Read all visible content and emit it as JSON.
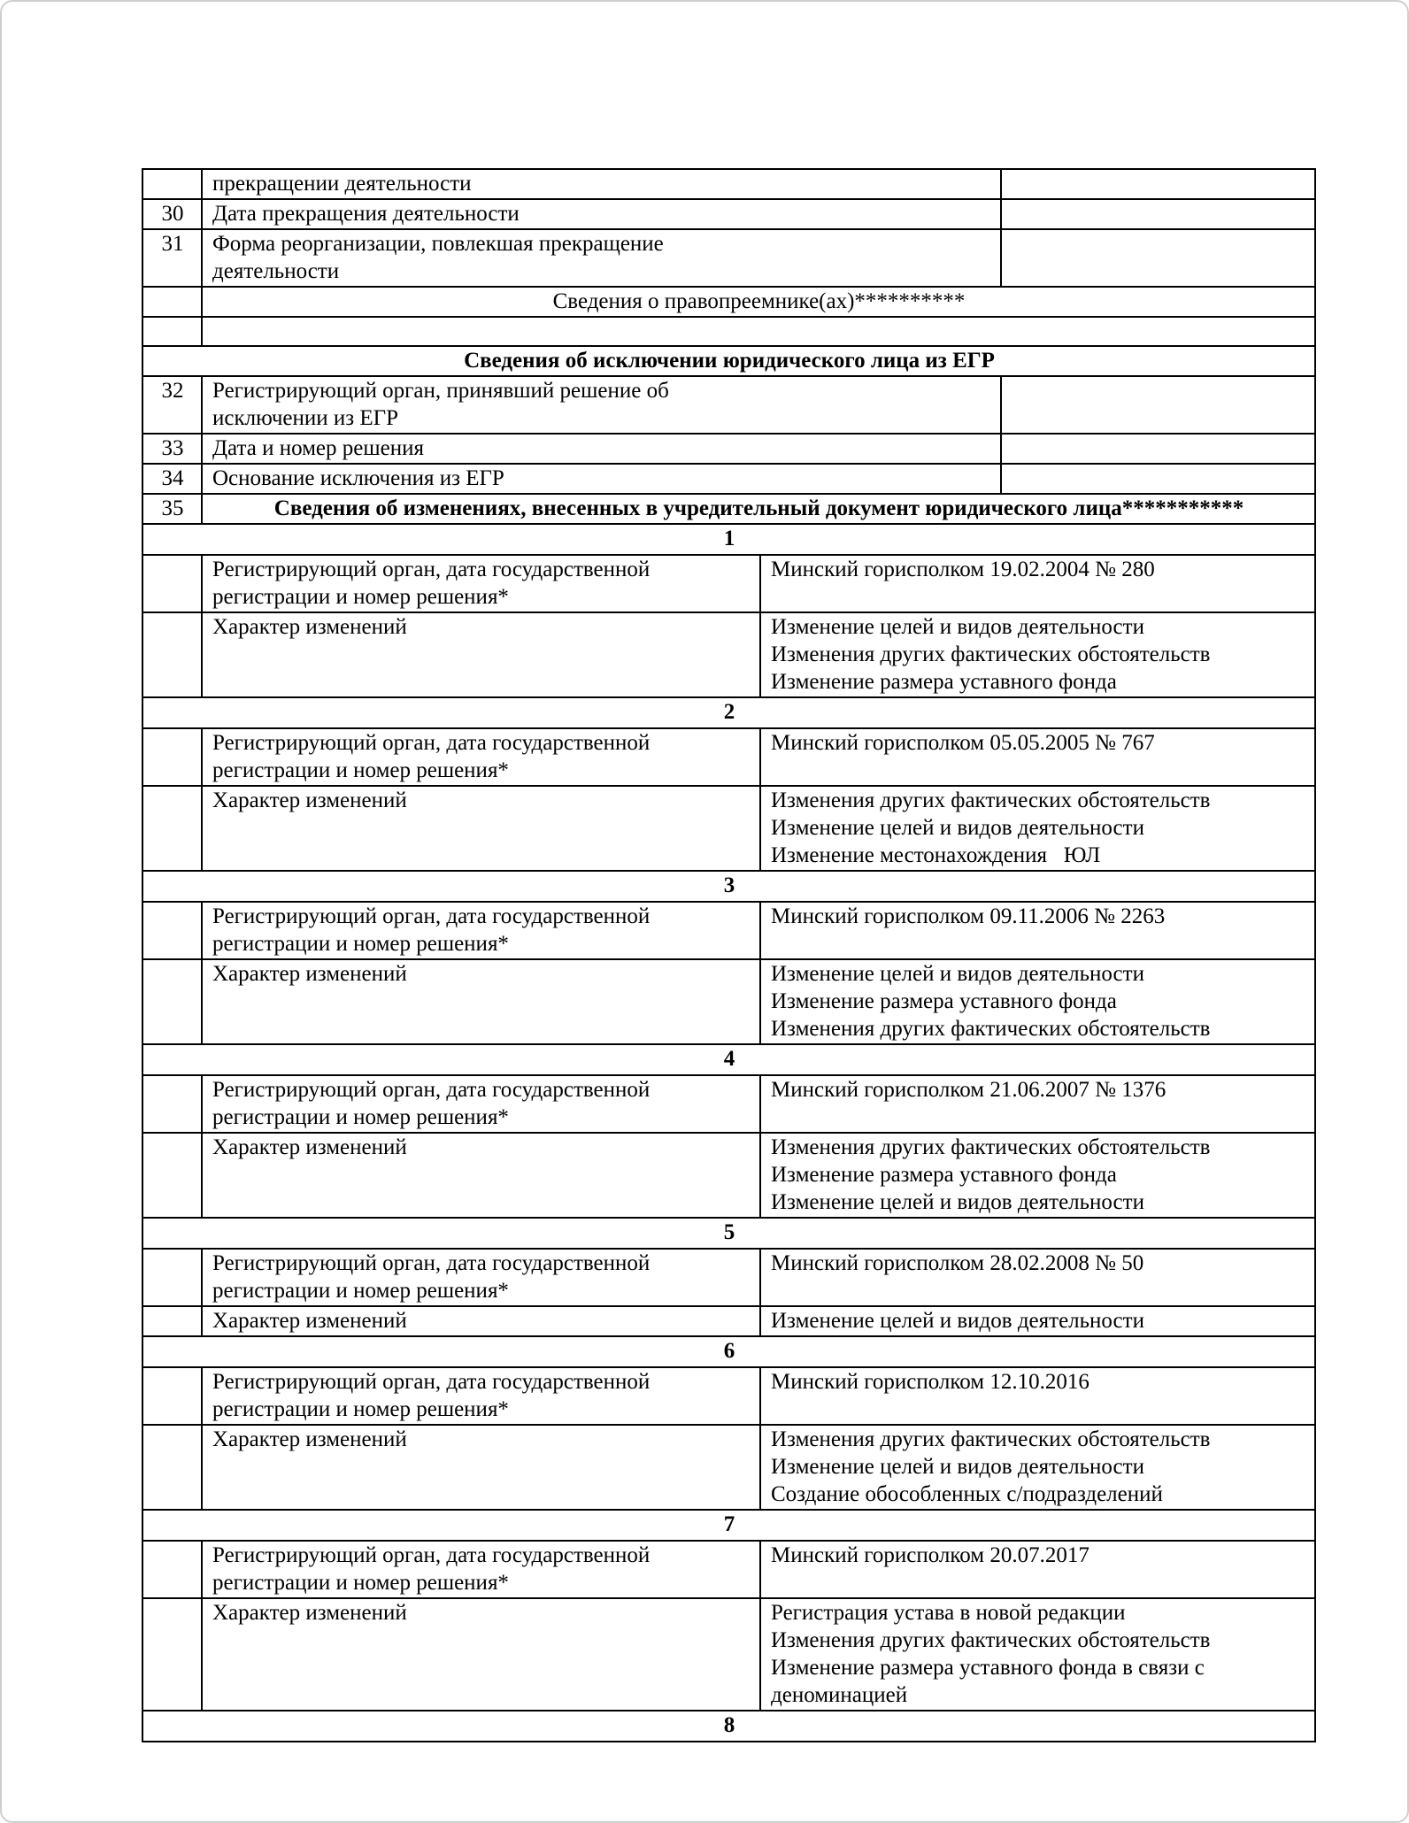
{
  "table": {
    "top_rows": [
      {
        "num": "",
        "label": "прекращении деятельности",
        "value": ""
      },
      {
        "num": "30",
        "label": "Дата прекращения деятельности",
        "value": ""
      },
      {
        "num": "31",
        "label": "Форма реорганизации, повлекшая прекращение\nдеятельности",
        "value": ""
      }
    ],
    "successor_header": "Сведения о правопреемнике(ах)**********",
    "exclusion_header": "Сведения об исключении юридического лица из ЕГР",
    "exclusion_rows": [
      {
        "num": "32",
        "label": "Регистрирующий орган, принявший решение об\nисключении из ЕГР",
        "value": ""
      },
      {
        "num": "33",
        "label": "Дата и номер решения",
        "value": ""
      },
      {
        "num": "34",
        "label": "Основание исключения из ЕГР",
        "value": ""
      }
    ],
    "row35": {
      "num": "35",
      "label": "Сведения об изменениях, внесенных в учредительный документ юридического лица***********"
    },
    "section_labels": {
      "org": "Регистрирующий орган, дата государственной\nрегистрации и номер решения*",
      "changes": "Характер изменений"
    },
    "sections": [
      {
        "number": "1",
        "org_value": "Минский горисполком 19.02.2004 № 280",
        "changes": [
          "Изменение целей и видов деятельности",
          "Изменения других фактических обстоятельств",
          "Изменение размера уставного фонда"
        ]
      },
      {
        "number": "2",
        "org_value": "Минский горисполком 05.05.2005 № 767",
        "changes": [
          "Изменения других фактических обстоятельств",
          "Изменение целей и видов деятельности",
          "Изменение местонахождения   ЮЛ"
        ]
      },
      {
        "number": "3",
        "org_value": "Минский горисполком 09.11.2006 № 2263",
        "changes": [
          "Изменение целей и видов деятельности",
          "Изменение размера уставного фонда",
          "Изменения других фактических обстоятельств"
        ]
      },
      {
        "number": "4",
        "org_value": "Минский горисполком 21.06.2007 № 1376",
        "changes": [
          "Изменения других фактических обстоятельств",
          "Изменение размера уставного фонда",
          "Изменение целей и видов деятельности"
        ]
      },
      {
        "number": "5",
        "org_value": "Минский горисполком 28.02.2008 № 50",
        "changes": [
          "Изменение целей и видов деятельности"
        ]
      },
      {
        "number": "6",
        "org_value": "Минский горисполком 12.10.2016",
        "changes": [
          "Изменения других фактических обстоятельств",
          "Изменение целей и видов деятельности",
          "Создание обособленных с/подразделений"
        ]
      },
      {
        "number": "7",
        "org_value": "Минский горисполком 20.07.2017",
        "changes": [
          "Регистрация устава в новой редакции",
          "Изменения других фактических обстоятельств",
          "Изменение размера уставного фонда в связи с деноминацией"
        ]
      },
      {
        "number": "8",
        "org_value": null,
        "changes": null
      }
    ]
  }
}
